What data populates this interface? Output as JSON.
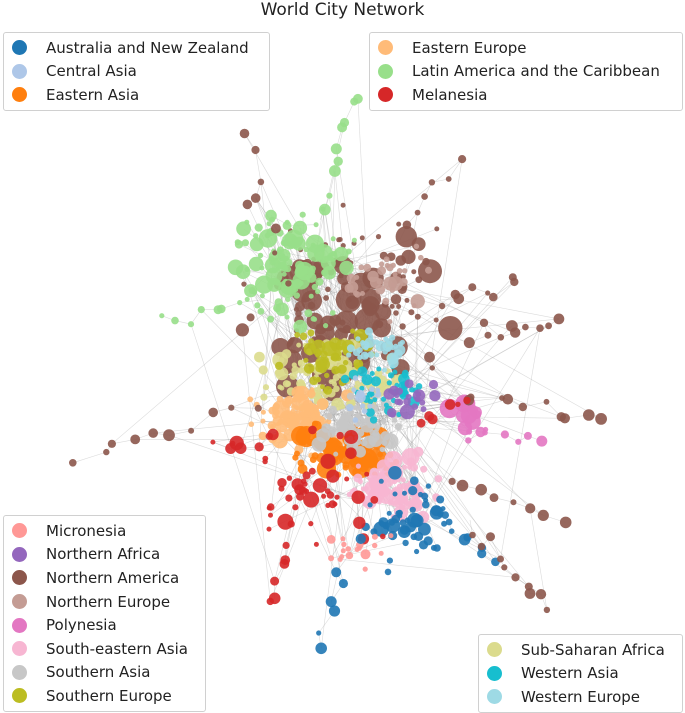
{
  "title": "World City Network",
  "legends": [
    {
      "name": "legend-top-left",
      "items": [
        {
          "label": "Australia and New Zealand",
          "color": "#1f77b4"
        },
        {
          "label": "Central Asia",
          "color": "#aec7e8"
        },
        {
          "label": "Eastern Asia",
          "color": "#ff7f0e"
        }
      ]
    },
    {
      "name": "legend-top-right",
      "items": [
        {
          "label": "Eastern Europe",
          "color": "#ffbb78"
        },
        {
          "label": "Latin America and the Caribbean",
          "color": "#98df8a"
        },
        {
          "label": "Melanesia",
          "color": "#d62728"
        }
      ]
    },
    {
      "name": "legend-bottom-left",
      "items": [
        {
          "label": "Micronesia",
          "color": "#ff9896"
        },
        {
          "label": "Northern Africa",
          "color": "#9467bd"
        },
        {
          "label": "Northern America",
          "color": "#8c564b"
        },
        {
          "label": "Northern Europe",
          "color": "#c49c94"
        },
        {
          "label": "Polynesia",
          "color": "#e377c2"
        },
        {
          "label": "South-eastern Asia",
          "color": "#f7b6d2"
        },
        {
          "label": "Southern Asia",
          "color": "#c7c7c7"
        },
        {
          "label": "Southern Europe",
          "color": "#bcbd22"
        }
      ]
    },
    {
      "name": "legend-bottom-right",
      "items": [
        {
          "label": "Sub-Saharan Africa",
          "color": "#dbdb8d"
        },
        {
          "label": "Western Asia",
          "color": "#17becf"
        },
        {
          "label": "Western Europe",
          "color": "#9edae5"
        }
      ]
    }
  ]
}
